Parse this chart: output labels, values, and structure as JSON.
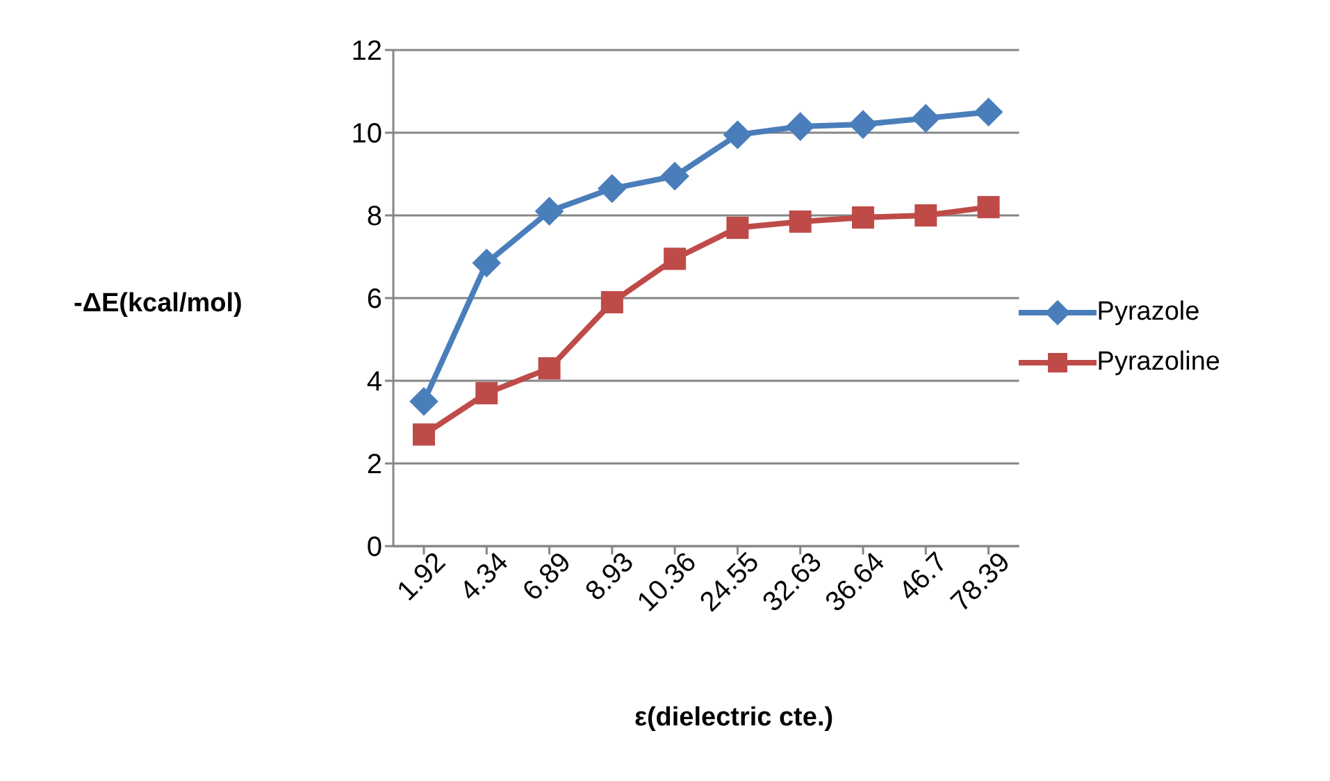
{
  "chart_data": {
    "type": "line",
    "xlabel": "ε(dielectric cte.)",
    "ylabel": "-ΔE(kcal/mol)",
    "categories": [
      "1.92",
      "4.34",
      "6.89",
      "8.93",
      "10.36",
      "24.55",
      "32.63",
      "36.64",
      "46.7",
      "78.39"
    ],
    "series": [
      {
        "name": "Pyrazole",
        "color": "#4a7ebb",
        "marker": "diamond",
        "values": [
          3.5,
          6.85,
          8.1,
          8.65,
          8.95,
          9.95,
          10.15,
          10.2,
          10.35,
          10.5
        ]
      },
      {
        "name": "Pyrazoline",
        "color": "#be4b48",
        "marker": "square",
        "values": [
          2.7,
          3.7,
          4.3,
          5.9,
          6.95,
          7.7,
          7.85,
          7.95,
          8.0,
          8.2
        ]
      }
    ],
    "ylim": [
      0,
      12
    ],
    "yticks": [
      0,
      2,
      4,
      6,
      8,
      10,
      12
    ],
    "grid": "y",
    "legend": "right",
    "line_style": "solid"
  }
}
